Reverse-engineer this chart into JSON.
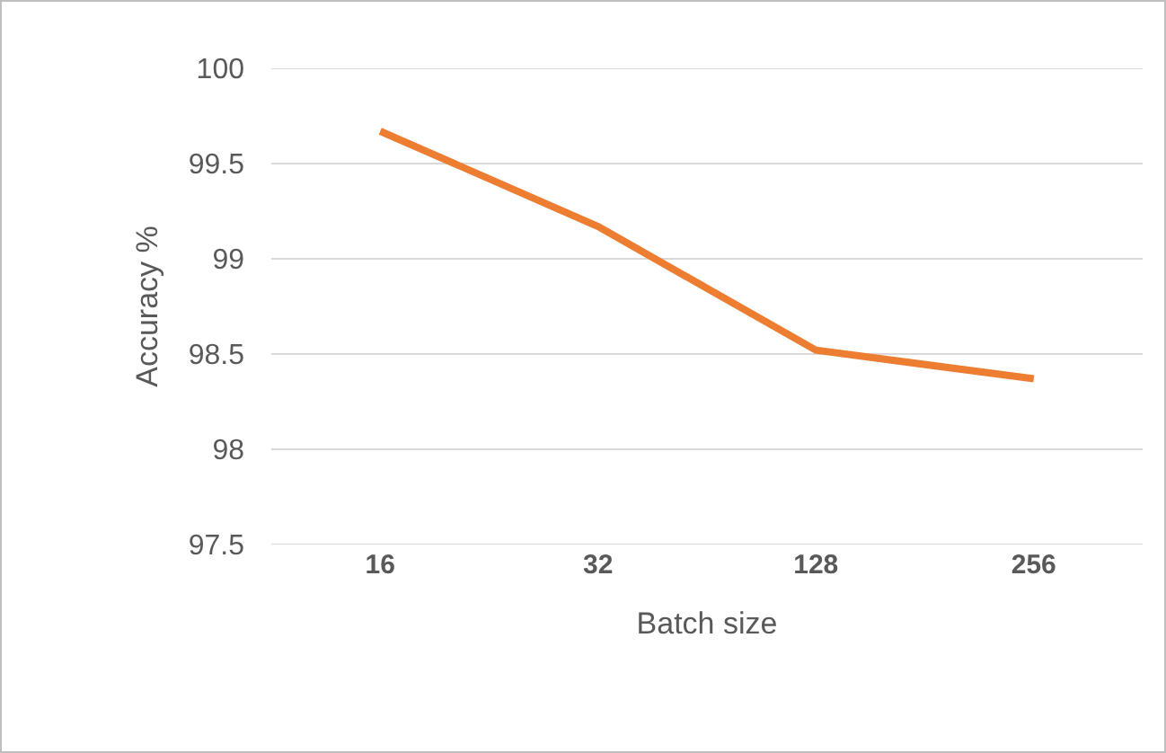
{
  "chart_data": {
    "type": "line",
    "xlabel": "Batch size",
    "ylabel": "Accuracy %",
    "categories": [
      "16",
      "32",
      "128",
      "256"
    ],
    "series": [
      {
        "color": "#ed7d31",
        "values": [
          99.67,
          99.17,
          98.52,
          98.37
        ]
      }
    ],
    "ylim": [
      97.5,
      100
    ],
    "yticks": [
      97.5,
      98,
      98.5,
      99,
      99.5,
      100
    ],
    "grid": "y",
    "marker": "none",
    "line_style": "solid"
  }
}
